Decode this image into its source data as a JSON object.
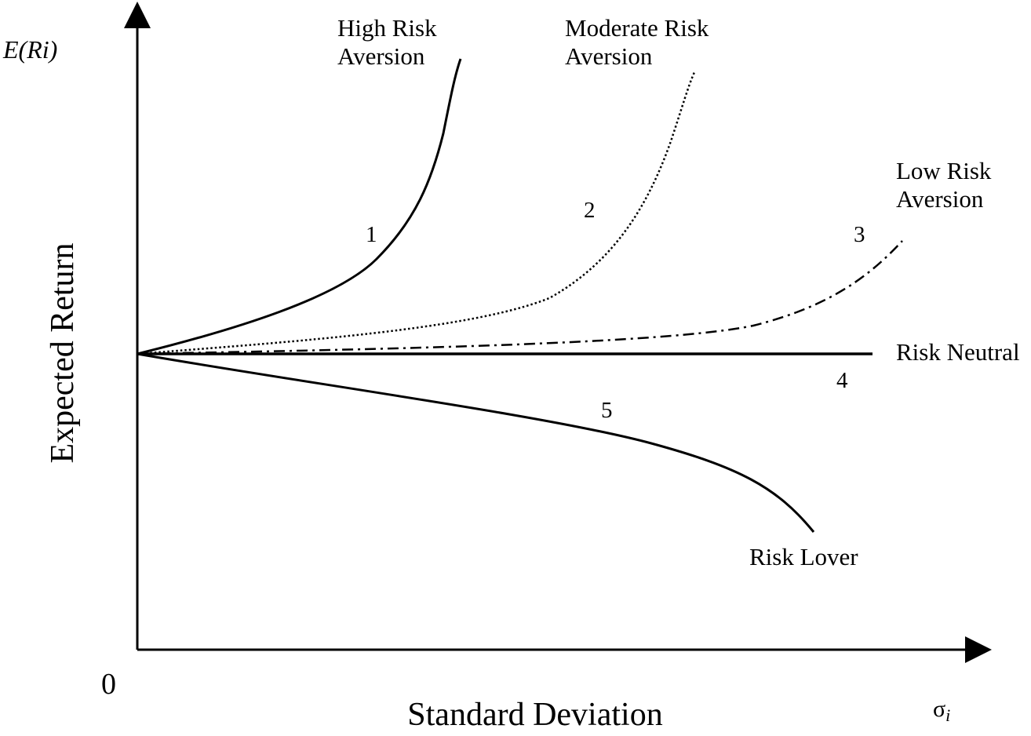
{
  "axes": {
    "y_symbol": "E(Ri)",
    "y_label": "Expected Return",
    "x_label": "Standard Deviation",
    "x_symbol_base": "σ",
    "x_symbol_sub": "i",
    "origin": "0"
  },
  "curves": [
    {
      "id": "high-risk-aversion",
      "number": "1",
      "label_lines": [
        "High Risk",
        "Aversion"
      ],
      "style": "solid"
    },
    {
      "id": "moderate-risk-aversion",
      "number": "2",
      "label_lines": [
        "Moderate Risk",
        "Aversion"
      ],
      "style": "dotted"
    },
    {
      "id": "low-risk-aversion",
      "number": "3",
      "label_lines": [
        "Low Risk",
        "Aversion"
      ],
      "style": "dash-dot"
    },
    {
      "id": "risk-neutral",
      "number": "4",
      "label_lines": [
        "Risk Neutral"
      ],
      "style": "solid"
    },
    {
      "id": "risk-lover",
      "number": "5",
      "label_lines": [
        "Risk Lover"
      ],
      "style": "solid"
    }
  ],
  "colors": {
    "line": "#000000",
    "background": "#ffffff"
  }
}
